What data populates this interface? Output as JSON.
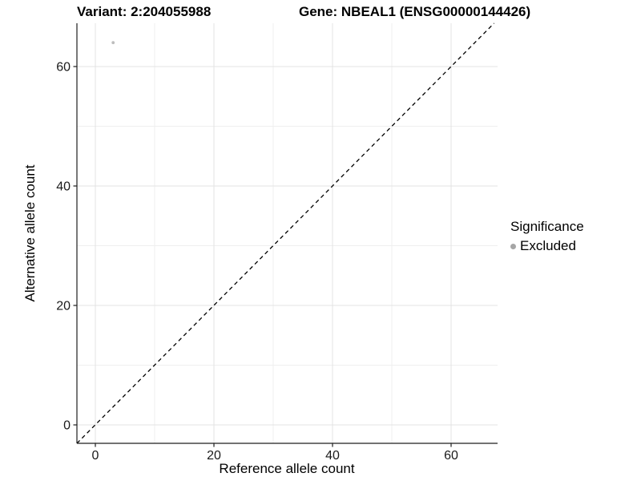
{
  "header": {
    "title_left": "Variant: 2:204055988",
    "title_right": "Gene: NBEAL1 (ENSG00000144426)"
  },
  "legend": {
    "title": "Significance",
    "items": [
      {
        "label": "Excluded",
        "color": "#a6a6a6"
      }
    ]
  },
  "chart_data": {
    "type": "scatter",
    "title_left": "Variant: 2:204055988",
    "title_right": "Gene: NBEAL1 (ENSG00000144426)",
    "xlabel": "Reference allele count",
    "ylabel": "Alternative allele count",
    "x_ticks": [
      0,
      20,
      40,
      60
    ],
    "y_ticks": [
      0,
      20,
      40,
      60
    ],
    "minor_grid_x": [
      10,
      30,
      50
    ],
    "minor_grid_y": [
      10,
      30,
      50
    ],
    "xlim": [
      -3.1,
      67.9
    ],
    "ylim": [
      -3.1,
      67.2
    ],
    "grid": "on",
    "legend_position": "right",
    "series": [
      {
        "name": "Excluded",
        "color": "#bdbdbd",
        "points": [
          {
            "x": 3,
            "y": 64
          }
        ]
      }
    ],
    "reference_line": {
      "type": "identity y=x",
      "style": "dashed",
      "color": "#000000"
    }
  },
  "colors": {
    "major_grid": "#e3e3e3",
    "minor_grid": "#efefef",
    "axis_line": "#1f1f1f",
    "tick_label": "#1a1a1a"
  }
}
